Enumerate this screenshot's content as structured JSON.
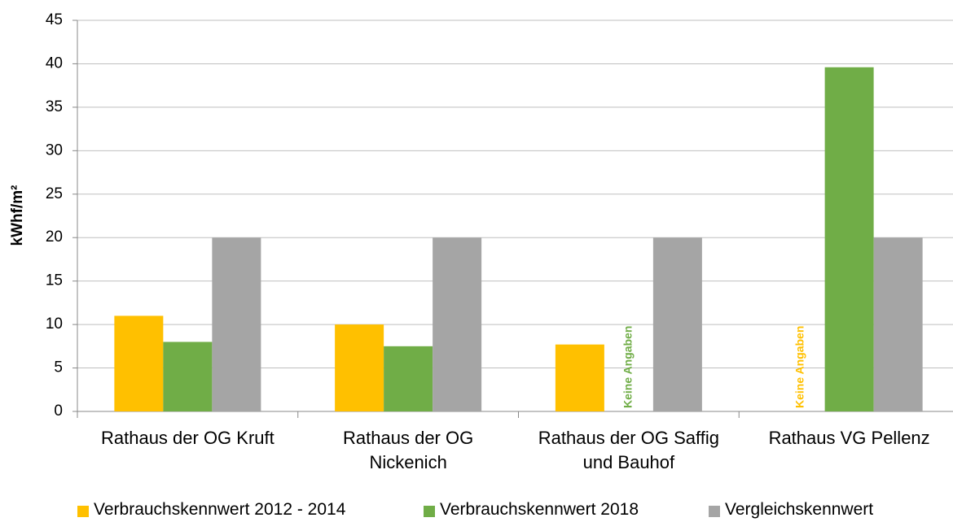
{
  "chart_data": {
    "type": "bar",
    "y_label": "kWhf/m²",
    "categories": [
      "Rathaus der OG Kruft",
      "Rathaus der OG\nNickenich",
      "Rathaus der OG Saffig\nund Bauhof",
      "Rathaus VG Pellenz"
    ],
    "series": [
      {
        "name": "Verbrauchskennwert 2012 - 2014",
        "color": "#ffc000",
        "values": [
          11,
          10,
          7.7,
          null
        ]
      },
      {
        "name": "Verbrauchskennwert 2018",
        "color": "#70ad47",
        "values": [
          8,
          7.5,
          null,
          39.6
        ]
      },
      {
        "name": "Vergleichskennwert",
        "color": "#a5a5a5",
        "values": [
          20,
          20,
          20,
          20
        ]
      }
    ],
    "annotations": [
      {
        "text": "Keine Angaben",
        "category": 2,
        "series": 1
      },
      {
        "text": "Keine Angaben",
        "category": 3,
        "series": 0
      }
    ],
    "ylim": [
      0,
      45
    ],
    "yticks": [
      0,
      5,
      10,
      15,
      20,
      25,
      30,
      35,
      40,
      45
    ],
    "grid": true,
    "legend": "bottom"
  }
}
